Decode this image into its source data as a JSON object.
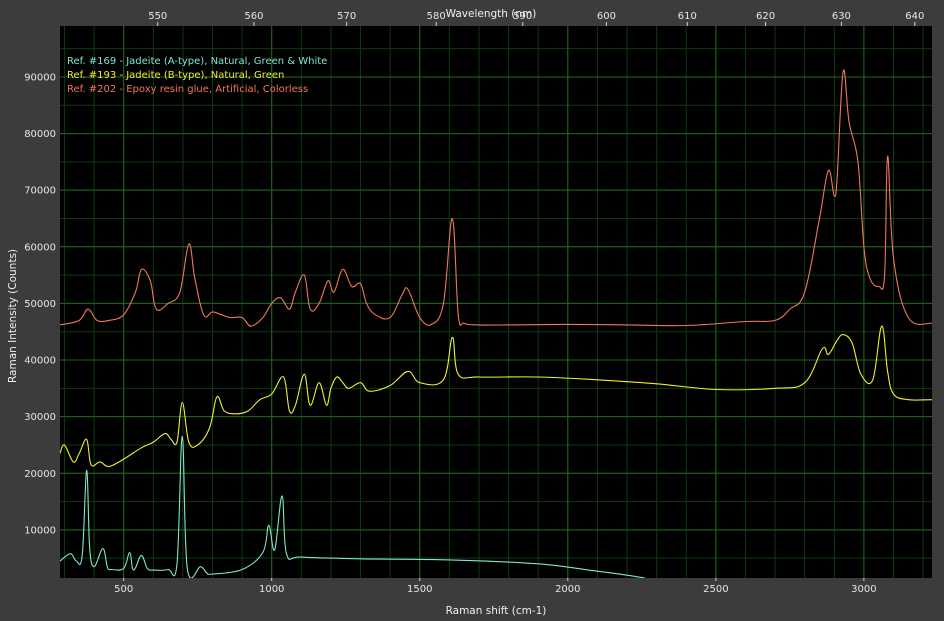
{
  "chart_data": {
    "type": "line",
    "xlabel": "Raman shift (cm-1)",
    "ylabel": "Raman Intensity (Counts)",
    "top_axis_label": "Wavelength (nm)",
    "xlim": [
      285,
      3230
    ],
    "ylim": [
      1500,
      99000
    ],
    "x_ticks": [
      500,
      1000,
      1500,
      2000,
      2500,
      3000
    ],
    "y_ticks": [
      10000,
      20000,
      30000,
      40000,
      50000,
      60000,
      70000,
      80000,
      90000
    ],
    "top_ticks": [
      550,
      560,
      570,
      580,
      590,
      600,
      610,
      620,
      630,
      640
    ],
    "grid": true,
    "legend_position": "top-left",
    "colors": {
      "background": "#000000",
      "grid": "#1d6a1d",
      "frame": "#3c3c3c"
    },
    "series": [
      {
        "name": "Ref. #169 - Jadeite (A-type), Natural, Green & White",
        "color": "#7fe8c8",
        "x": [
          285,
          320,
          340,
          360,
          375,
          385,
          400,
          430,
          445,
          460,
          500,
          520,
          530,
          540,
          560,
          580,
          600,
          650,
          680,
          698,
          715,
          760,
          780,
          800,
          900,
          970,
          990,
          1010,
          1035,
          1050,
          1100,
          1300,
          1600,
          1900,
          2100,
          2200,
          2260
        ],
        "y": [
          4500,
          5800,
          4500,
          5500,
          20500,
          7000,
          3500,
          6700,
          3400,
          3000,
          3200,
          6000,
          3200,
          3300,
          5500,
          3200,
          2900,
          3000,
          4000,
          26500,
          3200,
          3500,
          2400,
          2200,
          3000,
          6000,
          10800,
          6500,
          16000,
          5800,
          5200,
          4900,
          4700,
          4000,
          2700,
          2000,
          1500
        ]
      },
      {
        "name": "Ref. #193 - Jadeite (B-type), Natural, Green",
        "color": "#f0f030",
        "x": [
          285,
          300,
          330,
          350,
          375,
          390,
          420,
          450,
          500,
          560,
          600,
          640,
          660,
          680,
          698,
          720,
          750,
          790,
          815,
          840,
          880,
          920,
          960,
          1000,
          1040,
          1060,
          1080,
          1110,
          1130,
          1160,
          1185,
          1200,
          1220,
          1240,
          1260,
          1300,
          1330,
          1400,
          1460,
          1500,
          1580,
          1610,
          1630,
          1700,
          1900,
          2100,
          2300,
          2500,
          2700,
          2800,
          2860,
          2880,
          2910,
          2930,
          2960,
          2990,
          3030,
          3060,
          3080,
          3100,
          3150,
          3230
        ],
        "y": [
          23500,
          25000,
          22000,
          23500,
          26000,
          21500,
          22000,
          21200,
          22500,
          24500,
          25500,
          27000,
          26000,
          25500,
          32500,
          25500,
          25000,
          28000,
          33500,
          31000,
          30500,
          31000,
          33000,
          34000,
          37000,
          31000,
          32000,
          37500,
          32000,
          36000,
          32000,
          35000,
          37000,
          36000,
          35000,
          36000,
          34500,
          35500,
          38000,
          36000,
          36500,
          44000,
          37500,
          37000,
          37000,
          36500,
          35800,
          34800,
          35000,
          36000,
          42000,
          41000,
          43500,
          44500,
          43000,
          37500,
          36500,
          46000,
          38000,
          34000,
          33000,
          33000
        ]
      },
      {
        "name": "Ref. #202 - Epoxy resin glue, Artificial, Colorless",
        "color": "#f07858",
        "x": [
          285,
          350,
          380,
          410,
          450,
          500,
          540,
          560,
          590,
          610,
          650,
          690,
          720,
          740,
          770,
          800,
          830,
          860,
          900,
          930,
          970,
          1000,
          1030,
          1060,
          1080,
          1110,
          1130,
          1160,
          1190,
          1210,
          1240,
          1270,
          1300,
          1320,
          1350,
          1400,
          1440,
          1460,
          1500,
          1540,
          1580,
          1610,
          1630,
          1650,
          1700,
          1800,
          2000,
          2200,
          2400,
          2600,
          2700,
          2750,
          2800,
          2850,
          2880,
          2900,
          2910,
          2930,
          2950,
          2980,
          3000,
          3020,
          3050,
          3070,
          3080,
          3100,
          3150,
          3230
        ],
        "y": [
          46200,
          47000,
          49000,
          47000,
          47000,
          48000,
          52000,
          56000,
          54000,
          49000,
          50000,
          52000,
          60500,
          54500,
          48000,
          48500,
          48000,
          47500,
          47500,
          46000,
          47500,
          50000,
          51000,
          49000,
          52000,
          55000,
          49000,
          50000,
          54000,
          52000,
          56000,
          53000,
          53500,
          50000,
          48000,
          47500,
          51500,
          52500,
          47500,
          46300,
          50000,
          65000,
          48000,
          46500,
          46200,
          46200,
          46300,
          46200,
          46100,
          46800,
          47000,
          49000,
          52000,
          65000,
          73500,
          69000,
          72500,
          91000,
          82000,
          75000,
          60000,
          54500,
          53000,
          55000,
          76000,
          58000,
          47500,
          46500
        ]
      }
    ]
  }
}
